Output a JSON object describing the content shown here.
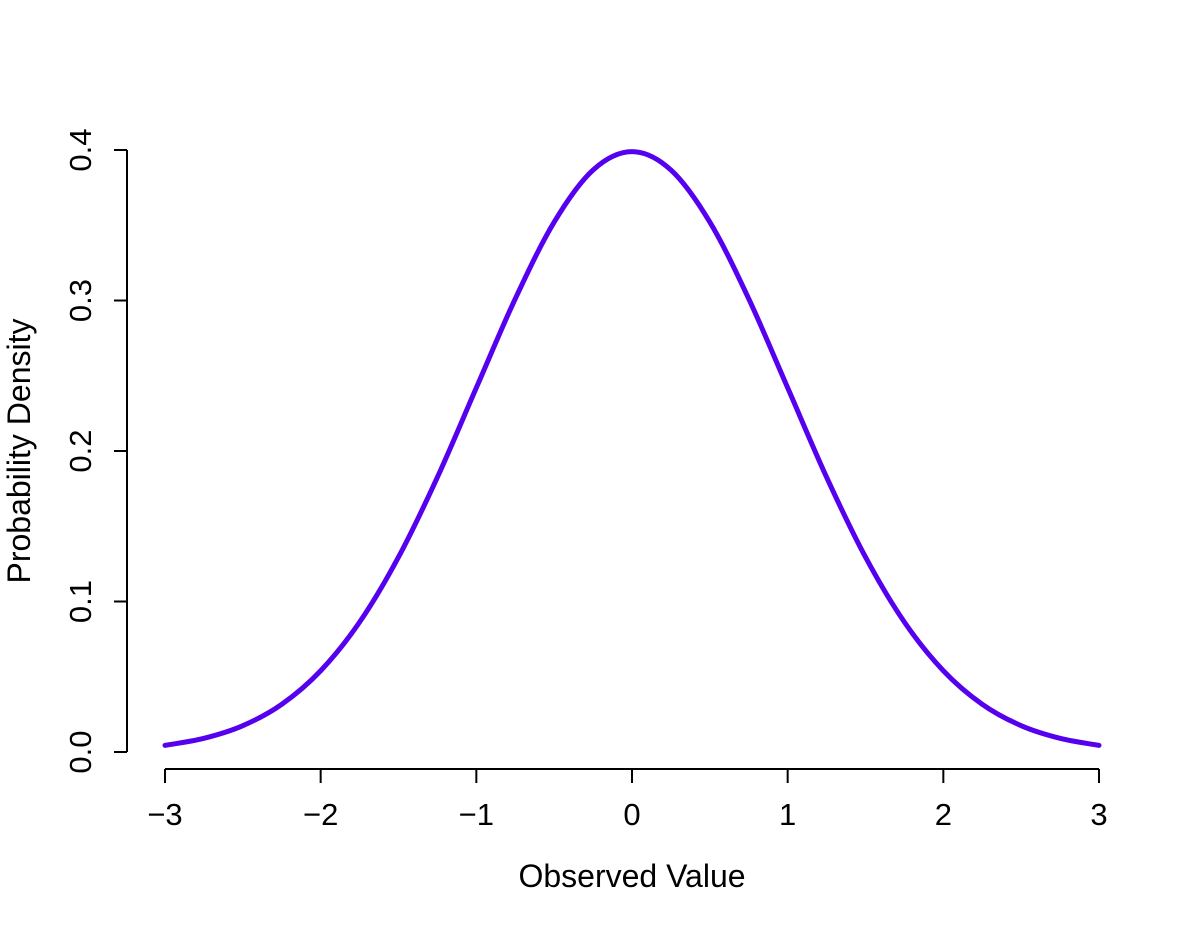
{
  "chart_data": {
    "type": "line",
    "title": "",
    "xlabel": "Observed Value",
    "ylabel": "Probability Density",
    "xlim": [
      -3,
      3
    ],
    "ylim": [
      0,
      0.4
    ],
    "x_ticks": [
      -3,
      -2,
      -1,
      0,
      1,
      2,
      3
    ],
    "x_tick_labels": [
      "−3",
      "−2",
      "−1",
      "0",
      "1",
      "2",
      "3"
    ],
    "y_ticks": [
      0.0,
      0.1,
      0.2,
      0.3,
      0.4
    ],
    "y_tick_labels": [
      "0.0",
      "0.1",
      "0.2",
      "0.3",
      "0.4"
    ],
    "grid": false,
    "legend": "none",
    "series": [
      {
        "color": "#5500ee",
        "x": [
          -3.0,
          -2.75,
          -2.5,
          -2.25,
          -2.0,
          -1.75,
          -1.5,
          -1.25,
          -1.0,
          -0.75,
          -0.5,
          -0.25,
          0.0,
          0.25,
          0.5,
          0.75,
          1.0,
          1.25,
          1.5,
          1.75,
          2.0,
          2.25,
          2.5,
          2.75,
          3.0
        ],
        "y": [
          0.0044,
          0.0091,
          0.0175,
          0.0317,
          0.054,
          0.0863,
          0.1295,
          0.1826,
          0.242,
          0.3011,
          0.3521,
          0.3867,
          0.3989,
          0.3867,
          0.3521,
          0.3011,
          0.242,
          0.1826,
          0.1295,
          0.0863,
          0.054,
          0.0317,
          0.0175,
          0.0091,
          0.0044
        ]
      }
    ]
  }
}
